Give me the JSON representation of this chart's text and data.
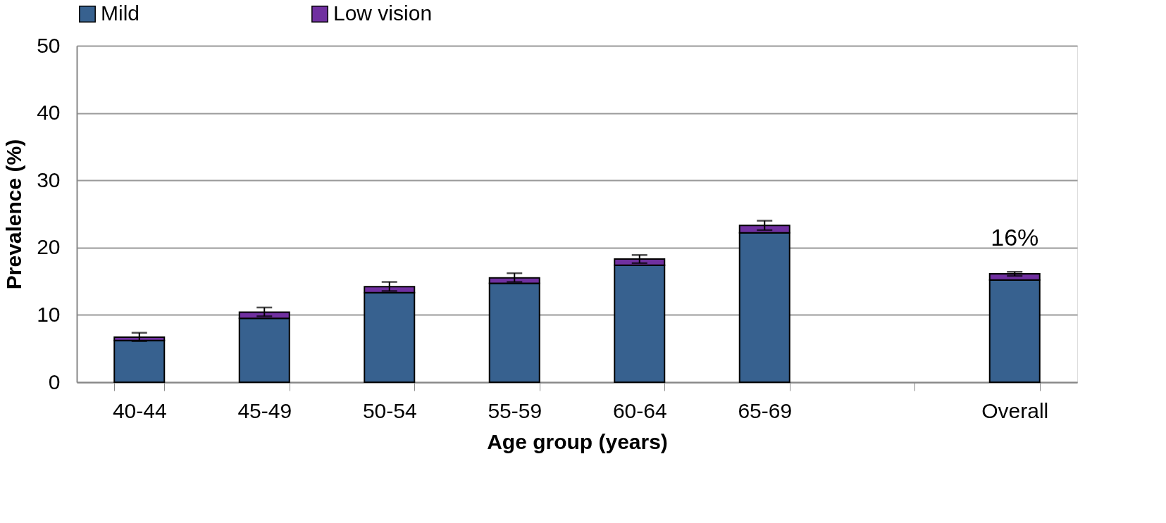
{
  "chart_data": {
    "type": "bar",
    "stacked": true,
    "xlabel": "Age group (years)",
    "ylabel": "Prevalence (%)",
    "categories": [
      "40-44",
      "45-49",
      "50-54",
      "55-59",
      "60-64",
      "65-69",
      null,
      "Overall"
    ],
    "series": [
      {
        "name": "Mild",
        "color": "#37618f",
        "values": [
          6.2,
          9.5,
          13.3,
          14.7,
          17.4,
          22.2,
          null,
          15.2
        ]
      },
      {
        "name": "Low vision",
        "color": "#7030a0",
        "values": [
          0.5,
          0.9,
          0.9,
          0.8,
          0.9,
          1.1,
          null,
          0.9
        ],
        "errors": [
          [
            6.1,
            7.35
          ],
          [
            9.8,
            11.1
          ],
          [
            13.55,
            14.9
          ],
          [
            14.9,
            16.2
          ],
          [
            17.7,
            18.9
          ],
          [
            22.6,
            24.0
          ],
          null,
          [
            15.8,
            16.4
          ]
        ]
      }
    ],
    "ylim": [
      0,
      50
    ],
    "yticks": [
      0,
      10,
      20,
      30,
      40,
      50
    ],
    "grid": "y",
    "legend": "top",
    "annotations": [
      {
        "text": "16%",
        "x": "Overall",
        "y": 16.1
      }
    ]
  }
}
